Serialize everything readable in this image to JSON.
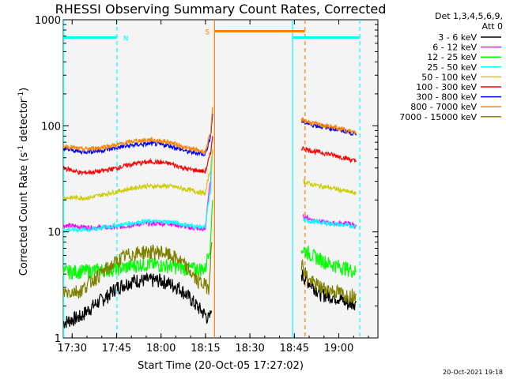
{
  "chart_data": {
    "type": "line",
    "title": "RHESSI Observing Summary Count Rates, Corrected",
    "xlabel": "Start Time (20-Oct-05 17:27:02)",
    "ylabel_main": "Corrected Count Rate (s",
    "ylabel_sup1": "-1",
    "ylabel_mid": " detector",
    "ylabel_sup2": "-1",
    "ylabel_end": ")",
    "y_scale": "log",
    "ylim": [
      1,
      1000
    ],
    "xlim_minutes": [
      17.45,
      19.22
    ],
    "x_tick_labels": [
      {
        "label": "17:30",
        "t": 17.5
      },
      {
        "label": "17:45",
        "t": 17.75
      },
      {
        "label": "18:00",
        "t": 18.0
      },
      {
        "label": "18:15",
        "t": 18.25
      },
      {
        "label": "18:30",
        "t": 18.5
      },
      {
        "label": "18:45",
        "t": 18.75
      },
      {
        "label": "19:00",
        "t": 19.0
      }
    ],
    "y_tick_labels": [
      {
        "label": "1",
        "v": 1
      },
      {
        "label": "10",
        "v": 10
      },
      {
        "label": "100",
        "v": 100
      },
      {
        "label": "1000",
        "v": 1000
      }
    ],
    "legend_header": [
      "Det 1,3,4,5,6,9,",
      "Att 0"
    ],
    "series": [
      {
        "name": "3 - 6 keV",
        "color": "#000000",
        "seg1": [
          [
            17.45,
            1.4
          ],
          [
            17.55,
            1.6
          ],
          [
            17.7,
            2.5
          ],
          [
            17.75,
            3
          ],
          [
            17.85,
            3.5
          ],
          [
            18.0,
            3.5
          ],
          [
            18.1,
            3
          ],
          [
            18.2,
            2
          ],
          [
            18.27,
            1.5
          ],
          [
            18.285,
            1.8
          ]
        ],
        "seg2": [
          [
            18.79,
            4
          ],
          [
            18.82,
            3.5
          ],
          [
            18.9,
            2.6
          ],
          [
            19.0,
            2.4
          ],
          [
            19.05,
            2.1
          ],
          [
            19.1,
            2.2
          ]
        ]
      },
      {
        "name": "6 - 12 keV",
        "color": "#ff00ff",
        "seg1": [
          [
            17.45,
            11.5
          ],
          [
            17.6,
            11
          ],
          [
            17.75,
            11
          ],
          [
            17.9,
            12
          ],
          [
            18.05,
            12
          ],
          [
            18.15,
            11
          ],
          [
            18.25,
            10.5
          ],
          [
            18.28,
            30
          ],
          [
            18.29,
            60
          ]
        ],
        "seg2": [
          [
            18.8,
            14
          ],
          [
            18.85,
            13
          ],
          [
            18.95,
            12
          ],
          [
            19.05,
            12
          ],
          [
            19.1,
            11.5
          ]
        ]
      },
      {
        "name": "12 - 25 keV",
        "color": "#00ff00",
        "seg1": [
          [
            17.45,
            4.2
          ],
          [
            17.6,
            4.3
          ],
          [
            17.75,
            4.5
          ],
          [
            17.9,
            5
          ],
          [
            18.05,
            4.8
          ],
          [
            18.15,
            4.5
          ],
          [
            18.25,
            4.5
          ],
          [
            18.28,
            8
          ],
          [
            18.29,
            20
          ]
        ],
        "seg2": [
          [
            18.79,
            7
          ],
          [
            18.85,
            6
          ],
          [
            18.95,
            5
          ],
          [
            19.05,
            4.5
          ],
          [
            19.1,
            4.2
          ]
        ]
      },
      {
        "name": "25 - 50 keV",
        "color": "#00ffff",
        "seg1": [
          [
            17.45,
            10.5
          ],
          [
            17.6,
            10.5
          ],
          [
            17.75,
            11.5
          ],
          [
            17.9,
            12.5
          ],
          [
            18.05,
            12.5
          ],
          [
            18.15,
            11.5
          ],
          [
            18.25,
            11
          ],
          [
            18.28,
            25
          ],
          [
            18.29,
            60
          ]
        ],
        "seg2": [
          [
            18.8,
            13
          ],
          [
            18.85,
            12.5
          ],
          [
            18.95,
            12
          ],
          [
            19.05,
            11.5
          ],
          [
            19.1,
            11.3
          ]
        ]
      },
      {
        "name": "50 - 100 keV",
        "color": "#cccc00",
        "seg1": [
          [
            17.45,
            21
          ],
          [
            17.6,
            21
          ],
          [
            17.75,
            24
          ],
          [
            17.9,
            27
          ],
          [
            18.05,
            27
          ],
          [
            18.15,
            25
          ],
          [
            18.25,
            23
          ],
          [
            18.28,
            40
          ],
          [
            18.29,
            60
          ]
        ],
        "seg2": [
          [
            18.8,
            30
          ],
          [
            18.85,
            28
          ],
          [
            18.95,
            26
          ],
          [
            19.05,
            24
          ],
          [
            19.1,
            23
          ]
        ]
      },
      {
        "name": "100 - 300 keV",
        "color": "#ff0000",
        "seg1": [
          [
            17.45,
            40
          ],
          [
            17.55,
            36
          ],
          [
            17.65,
            37
          ],
          [
            17.75,
            40
          ],
          [
            17.85,
            44
          ],
          [
            17.95,
            46
          ],
          [
            18.05,
            44
          ],
          [
            18.15,
            39
          ],
          [
            18.25,
            37
          ],
          [
            18.28,
            55
          ],
          [
            18.29,
            80
          ]
        ],
        "seg2": [
          [
            18.79,
            62
          ],
          [
            18.85,
            58
          ],
          [
            18.95,
            54
          ],
          [
            19.05,
            49
          ],
          [
            19.1,
            46
          ]
        ]
      },
      {
        "name": "300 - 800 keV",
        "color": "#0000ff",
        "seg1": [
          [
            17.45,
            61
          ],
          [
            17.55,
            57
          ],
          [
            17.65,
            58
          ],
          [
            17.75,
            62
          ],
          [
            17.85,
            66
          ],
          [
            17.95,
            68
          ],
          [
            18.05,
            65
          ],
          [
            18.15,
            57
          ],
          [
            18.25,
            54
          ],
          [
            18.28,
            80
          ],
          [
            18.29,
            130
          ]
        ],
        "seg2": [
          [
            18.79,
            110
          ],
          [
            18.85,
            102
          ],
          [
            18.95,
            95
          ],
          [
            19.05,
            88
          ],
          [
            19.1,
            82
          ]
        ]
      },
      {
        "name": "800 - 7000 keV",
        "color": "#ff8000",
        "seg1": [
          [
            17.45,
            65
          ],
          [
            17.55,
            60
          ],
          [
            17.65,
            62
          ],
          [
            17.75,
            66
          ],
          [
            17.85,
            72
          ],
          [
            17.95,
            74
          ],
          [
            18.05,
            70
          ],
          [
            18.15,
            61
          ],
          [
            18.25,
            57
          ],
          [
            18.28,
            85
          ],
          [
            18.29,
            150
          ]
        ],
        "seg2": [
          [
            18.79,
            115
          ],
          [
            18.85,
            106
          ],
          [
            18.95,
            98
          ],
          [
            19.05,
            90
          ],
          [
            19.1,
            85
          ]
        ]
      },
      {
        "name": "7000 - 15000 keV",
        "color": "#808000",
        "seg1": [
          [
            17.45,
            2.7
          ],
          [
            17.55,
            2.8
          ],
          [
            17.7,
            4.5
          ],
          [
            17.8,
            6
          ],
          [
            17.9,
            6.5
          ],
          [
            18.0,
            6.5
          ],
          [
            18.1,
            5.5
          ],
          [
            18.2,
            3.5
          ],
          [
            18.27,
            3
          ],
          [
            18.285,
            8
          ]
        ],
        "seg2": [
          [
            18.79,
            5
          ],
          [
            18.83,
            3.5
          ],
          [
            18.9,
            3
          ],
          [
            19.0,
            2.7
          ],
          [
            19.05,
            2.5
          ],
          [
            19.1,
            2.6
          ]
        ]
      }
    ],
    "flags": [
      {
        "label": "N",
        "color": "#00ffff",
        "t_start": 17.45,
        "t_end": 17.752,
        "v": 680
      },
      {
        "label": "S",
        "color": "#ff8000",
        "t_start": 18.301,
        "t_end": 18.81,
        "v": 780
      },
      {
        "label": "",
        "color": "#00ffff",
        "t_start": 18.74,
        "t_end": 19.118,
        "v": 680
      }
    ],
    "vlines": [
      {
        "t": 17.452,
        "color": "#00ffff",
        "style": "solid"
      },
      {
        "t": 17.752,
        "color": "#00ffff",
        "style": "dashed"
      },
      {
        "t": 18.301,
        "color": "#ff8000",
        "style": "solid"
      },
      {
        "t": 18.74,
        "color": "#00ffff",
        "style": "solid"
      },
      {
        "t": 18.81,
        "color": "#ff8000",
        "style": "dashed"
      },
      {
        "t": 19.118,
        "color": "#00ffff",
        "style": "dashed"
      }
    ],
    "timestamp": "20-Oct-2021 19:18",
    "background": "#ffffff",
    "plot_background": "#f4f4f4"
  }
}
